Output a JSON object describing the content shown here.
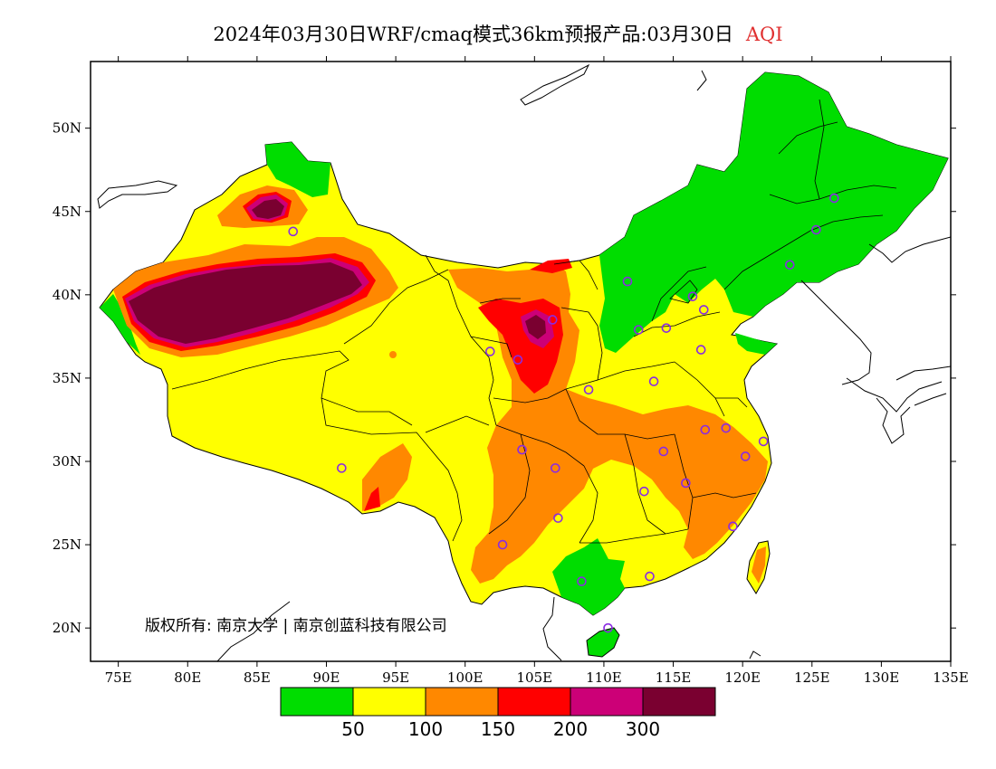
{
  "title": {
    "main": "2024年03月30日WRF/cmaq模式36km预报产品:03月30日",
    "variable": "AQI"
  },
  "axes": {
    "lon_labels": [
      "75E",
      "80E",
      "85E",
      "90E",
      "95E",
      "100E",
      "105E",
      "110E",
      "115E",
      "120E",
      "125E",
      "130E",
      "135E"
    ],
    "lat_labels": [
      "50N",
      "45N",
      "40N",
      "35N",
      "30N",
      "25N",
      "20N"
    ],
    "lon_range": [
      73,
      135
    ],
    "lat_range": [
      18,
      54
    ]
  },
  "copyright": "版权所有: 南京大学 | 南京创蓝科技有限公司",
  "legend": {
    "colors": [
      "#00dd00",
      "#ffff00",
      "#ff8800",
      "#ff0000",
      "#cc0077",
      "#7a0030"
    ],
    "labels": [
      "50",
      "100",
      "150",
      "200",
      "300"
    ]
  },
  "stations": [
    [
      87.6,
      43.8
    ],
    [
      91.1,
      29.6
    ],
    [
      101.8,
      36.6
    ],
    [
      103.8,
      36.1
    ],
    [
      106.3,
      38.5
    ],
    [
      104.1,
      30.7
    ],
    [
      106.5,
      29.6
    ],
    [
      106.7,
      26.6
    ],
    [
      102.7,
      25.0
    ],
    [
      108.4,
      22.8
    ],
    [
      110.3,
      20.0
    ],
    [
      113.3,
      23.1
    ],
    [
      112.9,
      28.2
    ],
    [
      114.3,
      30.6
    ],
    [
      115.9,
      28.7
    ],
    [
      117.3,
      31.9
    ],
    [
      118.8,
      32.0
    ],
    [
      120.2,
      30.3
    ],
    [
      121.5,
      31.2
    ],
    [
      119.3,
      26.1
    ],
    [
      112.5,
      37.9
    ],
    [
      114.5,
      38.0
    ],
    [
      108.9,
      34.3
    ],
    [
      113.6,
      34.8
    ],
    [
      117.0,
      36.7
    ],
    [
      116.4,
      39.9
    ],
    [
      117.2,
      39.1
    ],
    [
      111.7,
      40.8
    ],
    [
      123.4,
      41.8
    ],
    [
      125.3,
      43.9
    ],
    [
      126.6,
      45.8
    ]
  ]
}
